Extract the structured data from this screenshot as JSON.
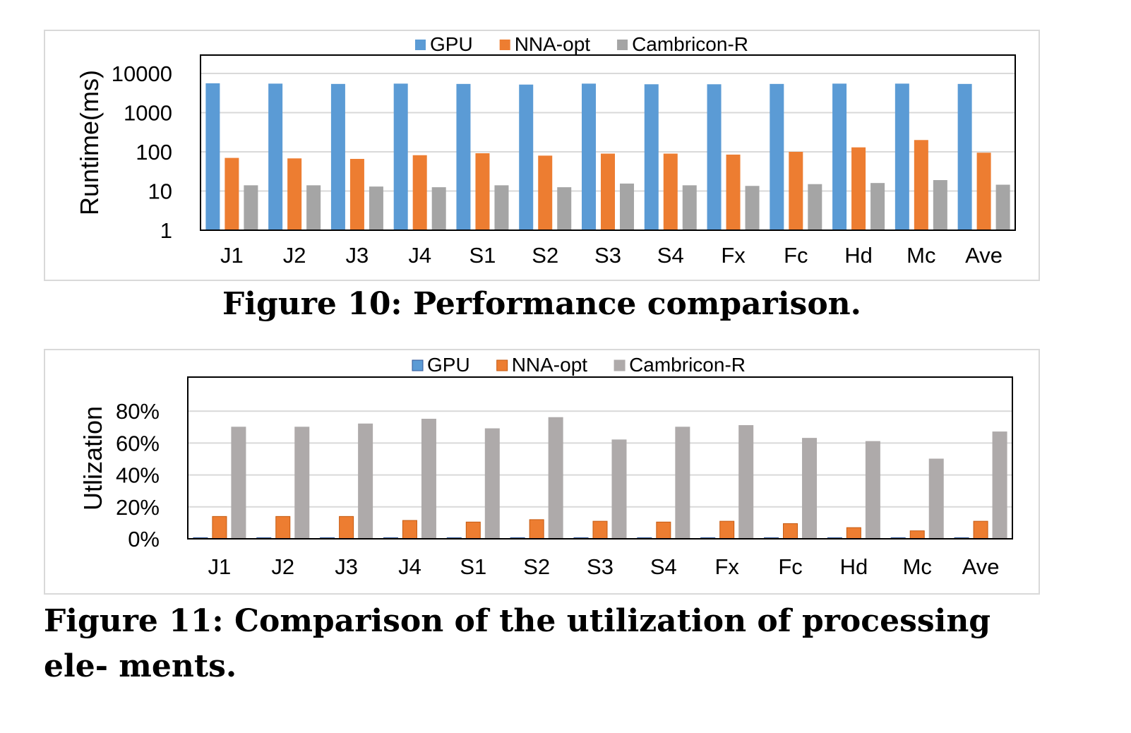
{
  "colors": {
    "gpu": "#5b9bd5",
    "nna": "#ed7d31",
    "cambricon": "#a5a5a5",
    "cambricon2": "#aeaaaa",
    "grid": "#d9d9d9",
    "axis": "#000000"
  },
  "figure10": {
    "caption": "Figure 10: Performance comparison."
  },
  "figure11": {
    "caption": "Figure 11: Comparison of the utilization of processing ele- ments."
  },
  "chart_data": [
    {
      "type": "bar",
      "title": "",
      "ylabel": "Runtime(ms)",
      "xlabel": "",
      "yscale": "log",
      "ylim": [
        1,
        10000
      ],
      "yticks": [
        "1",
        "10",
        "100",
        "1000",
        "10000"
      ],
      "yticks_values": [
        1,
        10,
        100,
        1000,
        10000
      ],
      "legend_position": "top",
      "grid": true,
      "categories": [
        "J1",
        "J2",
        "J3",
        "J4",
        "S1",
        "S2",
        "S3",
        "S4",
        "Fx",
        "Fc",
        "Hd",
        "Mc",
        "Ave"
      ],
      "series": [
        {
          "name": "GPU",
          "values": [
            5600,
            5500,
            5400,
            5500,
            5400,
            5200,
            5500,
            5300,
            5300,
            5400,
            5500,
            5500,
            5400
          ]
        },
        {
          "name": "NNA-opt",
          "values": [
            70,
            68,
            66,
            82,
            92,
            80,
            90,
            90,
            85,
            100,
            130,
            200,
            95
          ]
        },
        {
          "name": "Cambricon-R",
          "values": [
            14,
            14,
            13,
            12.5,
            14,
            12.5,
            15.5,
            14,
            13.5,
            15,
            16,
            19,
            14.5
          ]
        }
      ]
    },
    {
      "type": "bar",
      "title": "",
      "ylabel": "Utlization",
      "xlabel": "",
      "ylim": [
        0,
        90
      ],
      "yticks": [
        "0%",
        "20%",
        "40%",
        "60%",
        "80%"
      ],
      "yticks_values": [
        0,
        20,
        40,
        60,
        80
      ],
      "legend_position": "top",
      "grid": true,
      "categories": [
        "J1",
        "J2",
        "J3",
        "J4",
        "S1",
        "S2",
        "S3",
        "S4",
        "Fx",
        "Fc",
        "Hd",
        "Mc",
        "Ave"
      ],
      "series": [
        {
          "name": "GPU",
          "values": [
            0.3,
            0.3,
            0.3,
            0.3,
            0.3,
            0.3,
            0.3,
            0.3,
            0.3,
            0.3,
            0.3,
            0.3,
            0.3
          ]
        },
        {
          "name": "NNA-opt",
          "values": [
            14,
            14,
            14,
            11.5,
            10.5,
            12,
            11,
            10.5,
            11,
            9.5,
            7,
            5,
            11
          ]
        },
        {
          "name": "Cambricon-R",
          "values": [
            70,
            70,
            72,
            75,
            69,
            76,
            62,
            70,
            71,
            63,
            61,
            50,
            67
          ]
        }
      ]
    }
  ]
}
